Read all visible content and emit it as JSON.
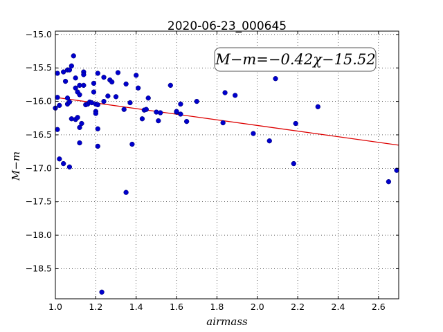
{
  "chart_data": {
    "type": "scatter",
    "title": "2020-06-23_000645",
    "xlabel": "airmass",
    "ylabel": "M−m",
    "xlim": [
      1.0,
      2.7
    ],
    "ylim": [
      -18.95,
      -14.95
    ],
    "y_inverted": true,
    "grid": true,
    "x_ticks": [
      "1.0",
      "1.2",
      "1.4",
      "1.6",
      "1.8",
      "2.0",
      "2.2",
      "2.4",
      "2.6"
    ],
    "y_ticks": [
      "−15.0",
      "−15.5",
      "−16.0",
      "−16.5",
      "−17.0",
      "−17.5",
      "−18.0",
      "−18.5"
    ],
    "point_color": "#0000cc",
    "line_color": "#dd0000",
    "annotation": "M−m=−0.42χ−15.52",
    "fit": {
      "slope": -0.42,
      "intercept": -15.52
    },
    "points": [
      {
        "x": 1.0,
        "y": -16.1
      },
      {
        "x": 1.01,
        "y": -15.94
      },
      {
        "x": 1.01,
        "y": -16.42
      },
      {
        "x": 1.01,
        "y": -15.58
      },
      {
        "x": 1.02,
        "y": -16.06
      },
      {
        "x": 1.02,
        "y": -16.86
      },
      {
        "x": 1.04,
        "y": -15.56
      },
      {
        "x": 1.04,
        "y": -16.93
      },
      {
        "x": 1.05,
        "y": -15.7
      },
      {
        "x": 1.06,
        "y": -16.04
      },
      {
        "x": 1.06,
        "y": -15.53
      },
      {
        "x": 1.06,
        "y": -15.95
      },
      {
        "x": 1.07,
        "y": -16.98
      },
      {
        "x": 1.07,
        "y": -16.01
      },
      {
        "x": 1.07,
        "y": -15.53
      },
      {
        "x": 1.08,
        "y": -15.47
      },
      {
        "x": 1.08,
        "y": -16.26
      },
      {
        "x": 1.09,
        "y": -15.32
      },
      {
        "x": 1.1,
        "y": -16.27
      },
      {
        "x": 1.1,
        "y": -15.8
      },
      {
        "x": 1.1,
        "y": -15.65
      },
      {
        "x": 1.11,
        "y": -15.86
      },
      {
        "x": 1.11,
        "y": -16.24
      },
      {
        "x": 1.12,
        "y": -15.9
      },
      {
        "x": 1.12,
        "y": -16.62
      },
      {
        "x": 1.12,
        "y": -15.76
      },
      {
        "x": 1.12,
        "y": -16.39
      },
      {
        "x": 1.13,
        "y": -16.33
      },
      {
        "x": 1.14,
        "y": -15.76
      },
      {
        "x": 1.14,
        "y": -15.56
      },
      {
        "x": 1.14,
        "y": -15.6
      },
      {
        "x": 1.15,
        "y": -16.05
      },
      {
        "x": 1.16,
        "y": -16.04
      },
      {
        "x": 1.17,
        "y": -16.01
      },
      {
        "x": 1.18,
        "y": -16.02
      },
      {
        "x": 1.19,
        "y": -15.73
      },
      {
        "x": 1.19,
        "y": -15.86
      },
      {
        "x": 1.2,
        "y": -16.04
      },
      {
        "x": 1.2,
        "y": -16.15
      },
      {
        "x": 1.2,
        "y": -16.18
      },
      {
        "x": 1.21,
        "y": -15.58
      },
      {
        "x": 1.21,
        "y": -16.05
      },
      {
        "x": 1.21,
        "y": -16.41
      },
      {
        "x": 1.21,
        "y": -16.67
      },
      {
        "x": 1.23,
        "y": -18.85
      },
      {
        "x": 1.24,
        "y": -15.64
      },
      {
        "x": 1.24,
        "y": -16.0
      },
      {
        "x": 1.26,
        "y": -15.92
      },
      {
        "x": 1.27,
        "y": -15.68
      },
      {
        "x": 1.28,
        "y": -15.71
      },
      {
        "x": 1.3,
        "y": -15.93
      },
      {
        "x": 1.31,
        "y": -15.57
      },
      {
        "x": 1.34,
        "y": -16.12
      },
      {
        "x": 1.35,
        "y": -15.74
      },
      {
        "x": 1.35,
        "y": -17.36
      },
      {
        "x": 1.37,
        "y": -16.02
      },
      {
        "x": 1.38,
        "y": -16.64
      },
      {
        "x": 1.4,
        "y": -15.61
      },
      {
        "x": 1.41,
        "y": -15.8
      },
      {
        "x": 1.43,
        "y": -16.26
      },
      {
        "x": 1.44,
        "y": -16.13
      },
      {
        "x": 1.45,
        "y": -16.12
      },
      {
        "x": 1.46,
        "y": -15.95
      },
      {
        "x": 1.5,
        "y": -16.16
      },
      {
        "x": 1.51,
        "y": -16.29
      },
      {
        "x": 1.52,
        "y": -16.17
      },
      {
        "x": 1.57,
        "y": -15.76
      },
      {
        "x": 1.6,
        "y": -16.16
      },
      {
        "x": 1.6,
        "y": -16.15
      },
      {
        "x": 1.62,
        "y": -16.04
      },
      {
        "x": 1.62,
        "y": -16.19
      },
      {
        "x": 1.65,
        "y": -16.3
      },
      {
        "x": 1.7,
        "y": -16.0
      },
      {
        "x": 1.83,
        "y": -16.32
      },
      {
        "x": 1.84,
        "y": -15.87
      },
      {
        "x": 1.89,
        "y": -15.91
      },
      {
        "x": 1.98,
        "y": -16.48
      },
      {
        "x": 2.06,
        "y": -16.59
      },
      {
        "x": 2.09,
        "y": -15.66
      },
      {
        "x": 2.18,
        "y": -16.93
      },
      {
        "x": 2.19,
        "y": -16.33
      },
      {
        "x": 2.3,
        "y": -16.08
      },
      {
        "x": 2.65,
        "y": -17.2
      },
      {
        "x": 2.69,
        "y": -17.03
      }
    ]
  }
}
